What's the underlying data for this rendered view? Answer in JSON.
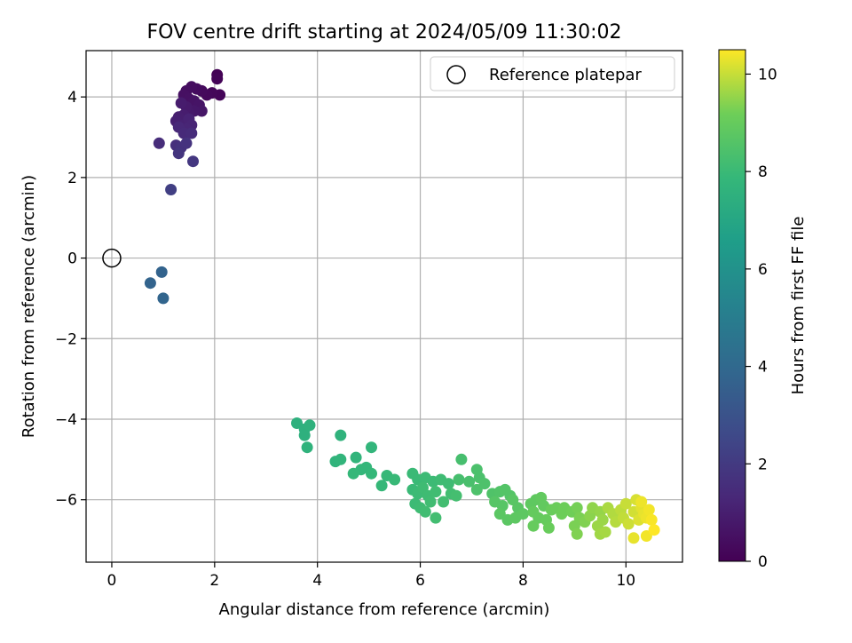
{
  "chart_data": {
    "type": "scatter",
    "title": "FOV centre drift starting at 2024/05/09 11:30:02",
    "xlabel": "Angular distance from reference (arcmin)",
    "ylabel": "Rotation from reference (arcmin)",
    "xlim": [
      -0.5,
      11.1
    ],
    "ylim": [
      -7.55,
      5.15
    ],
    "xticks": [
      0,
      2,
      4,
      6,
      8,
      10
    ],
    "xtick_labels": [
      "0",
      "2",
      "4",
      "6",
      "8",
      "10"
    ],
    "yticks": [
      -6,
      -4,
      -2,
      0,
      2,
      4
    ],
    "ytick_labels": [
      "−6",
      "−4",
      "−2",
      "0",
      "2",
      "4"
    ],
    "grid": true,
    "legend": {
      "position": "top-right",
      "entries": [
        {
          "label": "Reference platepar",
          "marker": "open-circle"
        }
      ]
    },
    "reference_point": {
      "x": 0,
      "y": 0
    },
    "colorbar": {
      "label": "Hours from first FF file",
      "colormap": "viridis",
      "range": [
        0,
        10.5
      ],
      "ticks": [
        0,
        2,
        4,
        6,
        8,
        10
      ],
      "tick_labels": [
        "0",
        "2",
        "4",
        "6",
        "8",
        "10"
      ]
    },
    "points": [
      [
        2.05,
        4.55,
        0.05
      ],
      [
        2.05,
        4.45,
        0.1
      ],
      [
        2.1,
        4.05,
        0.15
      ],
      [
        1.95,
        4.1,
        0.2
      ],
      [
        1.85,
        4.05,
        0.25
      ],
      [
        1.75,
        4.15,
        0.3
      ],
      [
        1.65,
        4.2,
        0.35
      ],
      [
        1.55,
        4.25,
        0.4
      ],
      [
        1.45,
        4.15,
        0.45
      ],
      [
        1.4,
        4.05,
        0.5
      ],
      [
        1.5,
        3.95,
        0.55
      ],
      [
        1.6,
        3.9,
        0.6
      ],
      [
        1.7,
        3.8,
        0.65
      ],
      [
        1.75,
        3.65,
        0.7
      ],
      [
        1.6,
        3.65,
        0.75
      ],
      [
        1.5,
        3.6,
        0.8
      ],
      [
        1.45,
        3.75,
        0.85
      ],
      [
        1.35,
        3.85,
        0.9
      ],
      [
        1.4,
        3.55,
        0.95
      ],
      [
        1.3,
        3.5,
        1.0
      ],
      [
        1.25,
        3.4,
        1.05
      ],
      [
        1.35,
        3.3,
        1.1
      ],
      [
        1.5,
        3.45,
        1.15
      ],
      [
        1.55,
        3.3,
        1.2
      ],
      [
        1.45,
        3.2,
        1.25
      ],
      [
        1.3,
        3.25,
        1.3
      ],
      [
        1.4,
        3.1,
        1.4
      ],
      [
        1.55,
        3.1,
        1.45
      ],
      [
        0.92,
        2.85,
        1.5
      ],
      [
        1.25,
        2.8,
        1.6
      ],
      [
        1.35,
        2.75,
        1.7
      ],
      [
        1.45,
        2.85,
        1.75
      ],
      [
        1.3,
        2.6,
        1.8
      ],
      [
        1.58,
        2.4,
        1.9
      ],
      [
        1.15,
        1.7,
        2.2
      ],
      [
        0.97,
        -0.35,
        3.7
      ],
      [
        0.75,
        -0.62,
        3.75
      ],
      [
        1.0,
        -1.0,
        3.8
      ],
      [
        3.6,
        -4.1,
        7.5
      ],
      [
        3.75,
        -4.25,
        7.5
      ],
      [
        3.85,
        -4.15,
        7.55
      ],
      [
        3.75,
        -4.4,
        7.5
      ],
      [
        3.8,
        -4.7,
        7.6
      ],
      [
        4.45,
        -4.4,
        7.6
      ],
      [
        4.35,
        -5.05,
        7.65
      ],
      [
        4.45,
        -5.0,
        7.7
      ],
      [
        4.75,
        -4.95,
        7.7
      ],
      [
        5.05,
        -4.7,
        7.75
      ],
      [
        4.85,
        -5.25,
        7.8
      ],
      [
        4.95,
        -5.2,
        7.8
      ],
      [
        5.05,
        -5.35,
        7.85
      ],
      [
        4.7,
        -5.35,
        7.85
      ],
      [
        5.25,
        -5.65,
        7.9
      ],
      [
        5.35,
        -5.4,
        7.9
      ],
      [
        5.5,
        -5.5,
        7.95
      ],
      [
        5.85,
        -5.35,
        8.0
      ],
      [
        5.95,
        -5.5,
        8.0
      ],
      [
        6.1,
        -5.45,
        8.05
      ],
      [
        6.25,
        -5.55,
        8.05
      ],
      [
        6.4,
        -5.5,
        8.1
      ],
      [
        6.55,
        -5.6,
        8.1
      ],
      [
        5.85,
        -5.75,
        8.0
      ],
      [
        5.95,
        -5.85,
        8.05
      ],
      [
        6.05,
        -5.7,
        8.1
      ],
      [
        6.15,
        -5.9,
        8.1
      ],
      [
        6.3,
        -5.8,
        8.15
      ],
      [
        6.2,
        -6.05,
        8.15
      ],
      [
        5.9,
        -6.1,
        8.05
      ],
      [
        6.0,
        -6.2,
        8.1
      ],
      [
        6.1,
        -6.3,
        8.15
      ],
      [
        6.3,
        -6.45,
        8.2
      ],
      [
        6.45,
        -6.05,
        8.2
      ],
      [
        6.6,
        -5.85,
        8.2
      ],
      [
        6.7,
        -5.9,
        8.25
      ],
      [
        6.8,
        -5.0,
        8.3
      ],
      [
        6.75,
        -5.5,
        8.3
      ],
      [
        6.95,
        -5.55,
        8.35
      ],
      [
        7.1,
        -5.25,
        8.4
      ],
      [
        7.15,
        -5.45,
        8.4
      ],
      [
        7.25,
        -5.6,
        8.45
      ],
      [
        7.1,
        -5.75,
        8.45
      ],
      [
        7.4,
        -5.85,
        8.5
      ],
      [
        7.55,
        -5.8,
        8.55
      ],
      [
        7.65,
        -5.75,
        8.6
      ],
      [
        7.75,
        -5.9,
        8.6
      ],
      [
        7.45,
        -6.05,
        8.65
      ],
      [
        7.6,
        -6.15,
        8.65
      ],
      [
        7.8,
        -6.0,
        8.7
      ],
      [
        7.9,
        -6.2,
        8.7
      ],
      [
        7.55,
        -6.35,
        8.75
      ],
      [
        7.7,
        -6.5,
        8.75
      ],
      [
        7.85,
        -6.45,
        8.8
      ],
      [
        8.0,
        -6.35,
        8.8
      ],
      [
        8.15,
        -6.1,
        8.85
      ],
      [
        8.25,
        -6.0,
        8.85
      ],
      [
        8.35,
        -5.95,
        8.9
      ],
      [
        8.4,
        -6.15,
        8.9
      ],
      [
        8.2,
        -6.3,
        8.95
      ],
      [
        8.3,
        -6.45,
        8.95
      ],
      [
        8.45,
        -6.5,
        9.0
      ],
      [
        8.5,
        -6.7,
        9.05
      ],
      [
        8.2,
        -6.65,
        9.0
      ],
      [
        8.55,
        -6.25,
        9.05
      ],
      [
        8.65,
        -6.2,
        9.1
      ],
      [
        8.8,
        -6.2,
        9.15
      ],
      [
        8.75,
        -6.35,
        9.15
      ],
      [
        8.95,
        -6.3,
        9.2
      ],
      [
        9.05,
        -6.2,
        9.25
      ],
      [
        9.1,
        -6.45,
        9.3
      ],
      [
        9.2,
        -6.55,
        9.35
      ],
      [
        9.0,
        -6.65,
        9.3
      ],
      [
        9.05,
        -6.85,
        9.35
      ],
      [
        9.3,
        -6.4,
        9.45
      ],
      [
        9.35,
        -6.2,
        9.5
      ],
      [
        9.5,
        -6.3,
        9.55
      ],
      [
        9.55,
        -6.5,
        9.6
      ],
      [
        9.45,
        -6.65,
        9.6
      ],
      [
        9.5,
        -6.85,
        9.65
      ],
      [
        9.6,
        -6.8,
        9.7
      ],
      [
        9.65,
        -6.2,
        9.75
      ],
      [
        9.75,
        -6.35,
        9.8
      ],
      [
        9.8,
        -6.55,
        9.85
      ],
      [
        9.9,
        -6.25,
        9.9
      ],
      [
        9.95,
        -6.45,
        9.95
      ],
      [
        10.0,
        -6.1,
        10.0
      ],
      [
        10.05,
        -6.6,
        10.05
      ],
      [
        10.15,
        -6.3,
        10.1
      ],
      [
        10.2,
        -6.0,
        10.15
      ],
      [
        10.25,
        -6.5,
        10.2
      ],
      [
        10.3,
        -6.2,
        10.25
      ],
      [
        10.35,
        -6.35,
        10.3
      ],
      [
        10.4,
        -6.45,
        10.35
      ],
      [
        10.45,
        -6.25,
        10.4
      ],
      [
        10.5,
        -6.5,
        10.45
      ],
      [
        10.15,
        -6.95,
        10.3
      ],
      [
        10.4,
        -6.9,
        10.4
      ],
      [
        10.55,
        -6.75,
        10.5
      ],
      [
        10.3,
        -6.05,
        10.35
      ]
    ]
  }
}
